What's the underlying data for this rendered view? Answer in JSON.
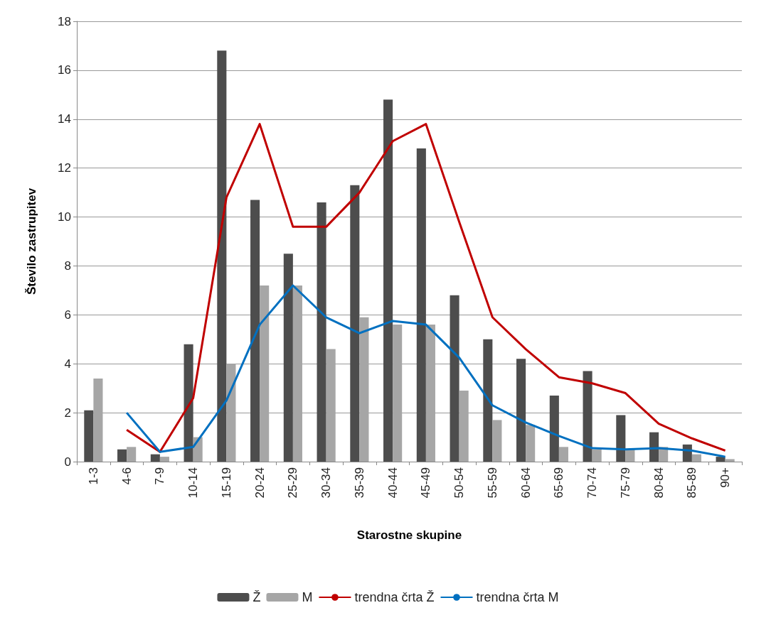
{
  "chart_data": {
    "type": "bar",
    "xlabel": "Starostne skupine",
    "ylabel": "Število zastrupitev",
    "categories": [
      "1-3",
      "4-6",
      "7-9",
      "10-14",
      "15-19",
      "20-24",
      "25-29",
      "30-34",
      "35-39",
      "40-44",
      "45-49",
      "50-54",
      "55-59",
      "60-64",
      "65-69",
      "70-74",
      "75-79",
      "80-84",
      "85-89",
      "90+"
    ],
    "series": [
      {
        "name": "Ž",
        "color": "#4d4d4d",
        "values": [
          2.1,
          0.5,
          0.3,
          4.8,
          16.8,
          10.7,
          8.5,
          10.6,
          11.3,
          14.8,
          12.8,
          6.8,
          5.0,
          4.2,
          2.7,
          3.7,
          1.9,
          1.2,
          0.7,
          0.2
        ]
      },
      {
        "name": "M",
        "color": "#a6a6a6",
        "values": [
          3.4,
          0.6,
          0.2,
          1.0,
          4.0,
          7.2,
          7.2,
          4.6,
          5.9,
          5.6,
          5.6,
          2.9,
          1.7,
          1.5,
          0.6,
          0.5,
          0.5,
          0.6,
          0.3,
          0.1
        ]
      },
      {
        "name": "trendna črta Ž",
        "type": "line",
        "color": "#c00000",
        "values": [
          null,
          1.3,
          0.4,
          2.6,
          10.8,
          13.8,
          9.6,
          9.6,
          11.0,
          13.1,
          13.8,
          9.8,
          5.9,
          4.6,
          3.45,
          3.2,
          2.8,
          1.55,
          0.95,
          0.45
        ]
      },
      {
        "name": "trendna črta M",
        "type": "line",
        "color": "#0070c0",
        "values": [
          null,
          2.0,
          0.4,
          0.6,
          2.5,
          5.6,
          7.2,
          5.9,
          5.25,
          5.75,
          5.6,
          4.25,
          2.3,
          1.6,
          1.05,
          0.55,
          0.5,
          0.55,
          0.45,
          0.2
        ]
      }
    ],
    "ylim": [
      0,
      18
    ],
    "yticks": [
      0,
      2,
      4,
      6,
      8,
      10,
      12,
      14,
      16,
      18
    ],
    "grid": "y",
    "legend": "bottom",
    "marker": "none"
  }
}
